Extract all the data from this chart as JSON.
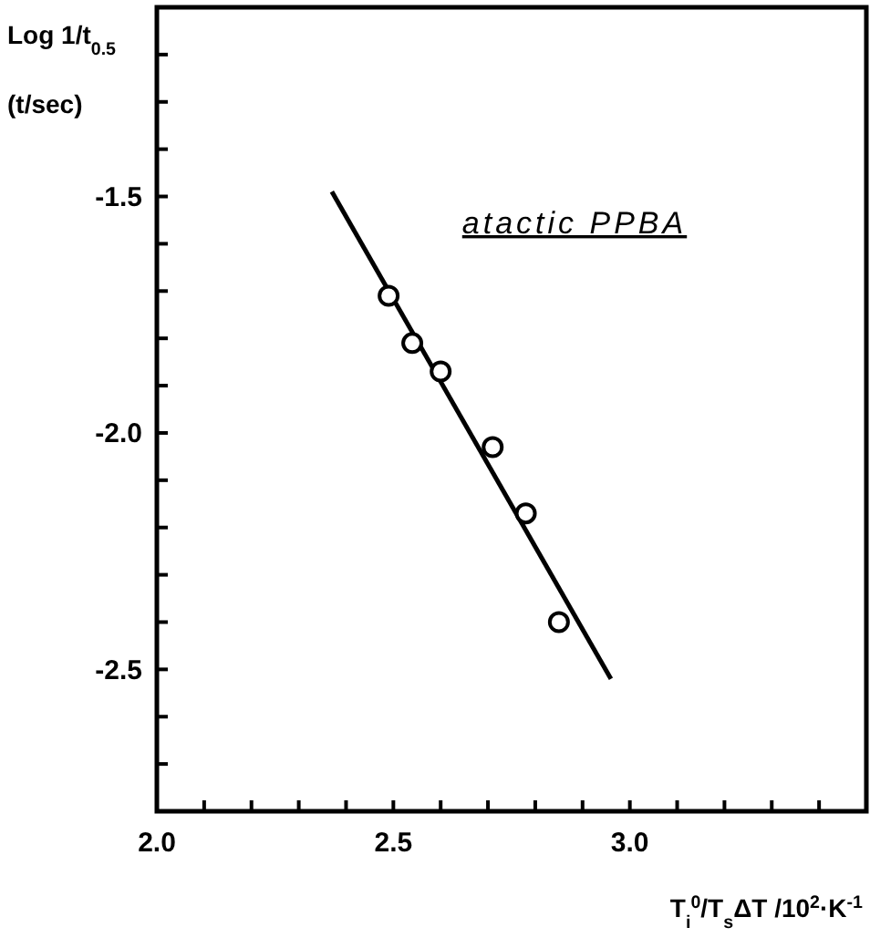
{
  "chart_data": {
    "type": "scatter",
    "xlabel": "T$_{i}$$^{0}$/T$_{s}$ΔT /10$^{2}$·K$^{-1}$",
    "ylabel": "Log 1/t$_{0.5}$ (t/sec)",
    "annotations": [
      "atactic PPBA"
    ],
    "xlim": [
      2.0,
      3.5
    ],
    "xticks": [
      {
        "value": 2.0,
        "label": "2.0"
      },
      {
        "value": 2.1,
        "label": null
      },
      {
        "value": 2.2,
        "label": null
      },
      {
        "value": 2.3,
        "label": null
      },
      {
        "value": 2.4,
        "label": null
      },
      {
        "value": 2.5,
        "label": "2.5"
      },
      {
        "value": 2.6,
        "label": null
      },
      {
        "value": 2.7,
        "label": null
      },
      {
        "value": 2.8,
        "label": null
      },
      {
        "value": 2.9,
        "label": null
      },
      {
        "value": 3.0,
        "label": "3.0"
      },
      {
        "value": 3.1,
        "label": null
      },
      {
        "value": 3.2,
        "label": null
      },
      {
        "value": 3.3,
        "label": null
      },
      {
        "value": 3.4,
        "label": null
      }
    ],
    "ylim": [
      -2.8,
      -1.1
    ],
    "yticks": [
      {
        "value": -2.7,
        "label": null
      },
      {
        "value": -2.6,
        "label": null
      },
      {
        "value": -2.5,
        "label": "-2.5"
      },
      {
        "value": -2.4,
        "label": null
      },
      {
        "value": -2.3,
        "label": null
      },
      {
        "value": -2.2,
        "label": null
      },
      {
        "value": -2.1,
        "label": null
      },
      {
        "value": -2.0,
        "label": "-2.0"
      },
      {
        "value": -1.9,
        "label": null
      },
      {
        "value": -1.8,
        "label": null
      },
      {
        "value": -1.7,
        "label": null
      },
      {
        "value": -1.6,
        "label": null
      },
      {
        "value": -1.5,
        "label": "-1.5"
      },
      {
        "value": -1.4,
        "label": null
      },
      {
        "value": -1.3,
        "label": null
      },
      {
        "value": -1.2,
        "label": null
      }
    ],
    "grid": false,
    "series": [
      {
        "marker": "circle",
        "color": "#000000",
        "x": [
          2.49,
          2.54,
          2.6,
          2.71,
          2.78,
          2.85
        ],
        "values": [
          -1.71,
          -1.81,
          -1.87,
          -2.03,
          -2.17,
          -2.4
        ]
      },
      {
        "type": "line",
        "marker": "none",
        "color": "#000000",
        "x": [
          2.37,
          2.96
        ],
        "values": [
          -1.49,
          -2.52
        ]
      }
    ]
  }
}
